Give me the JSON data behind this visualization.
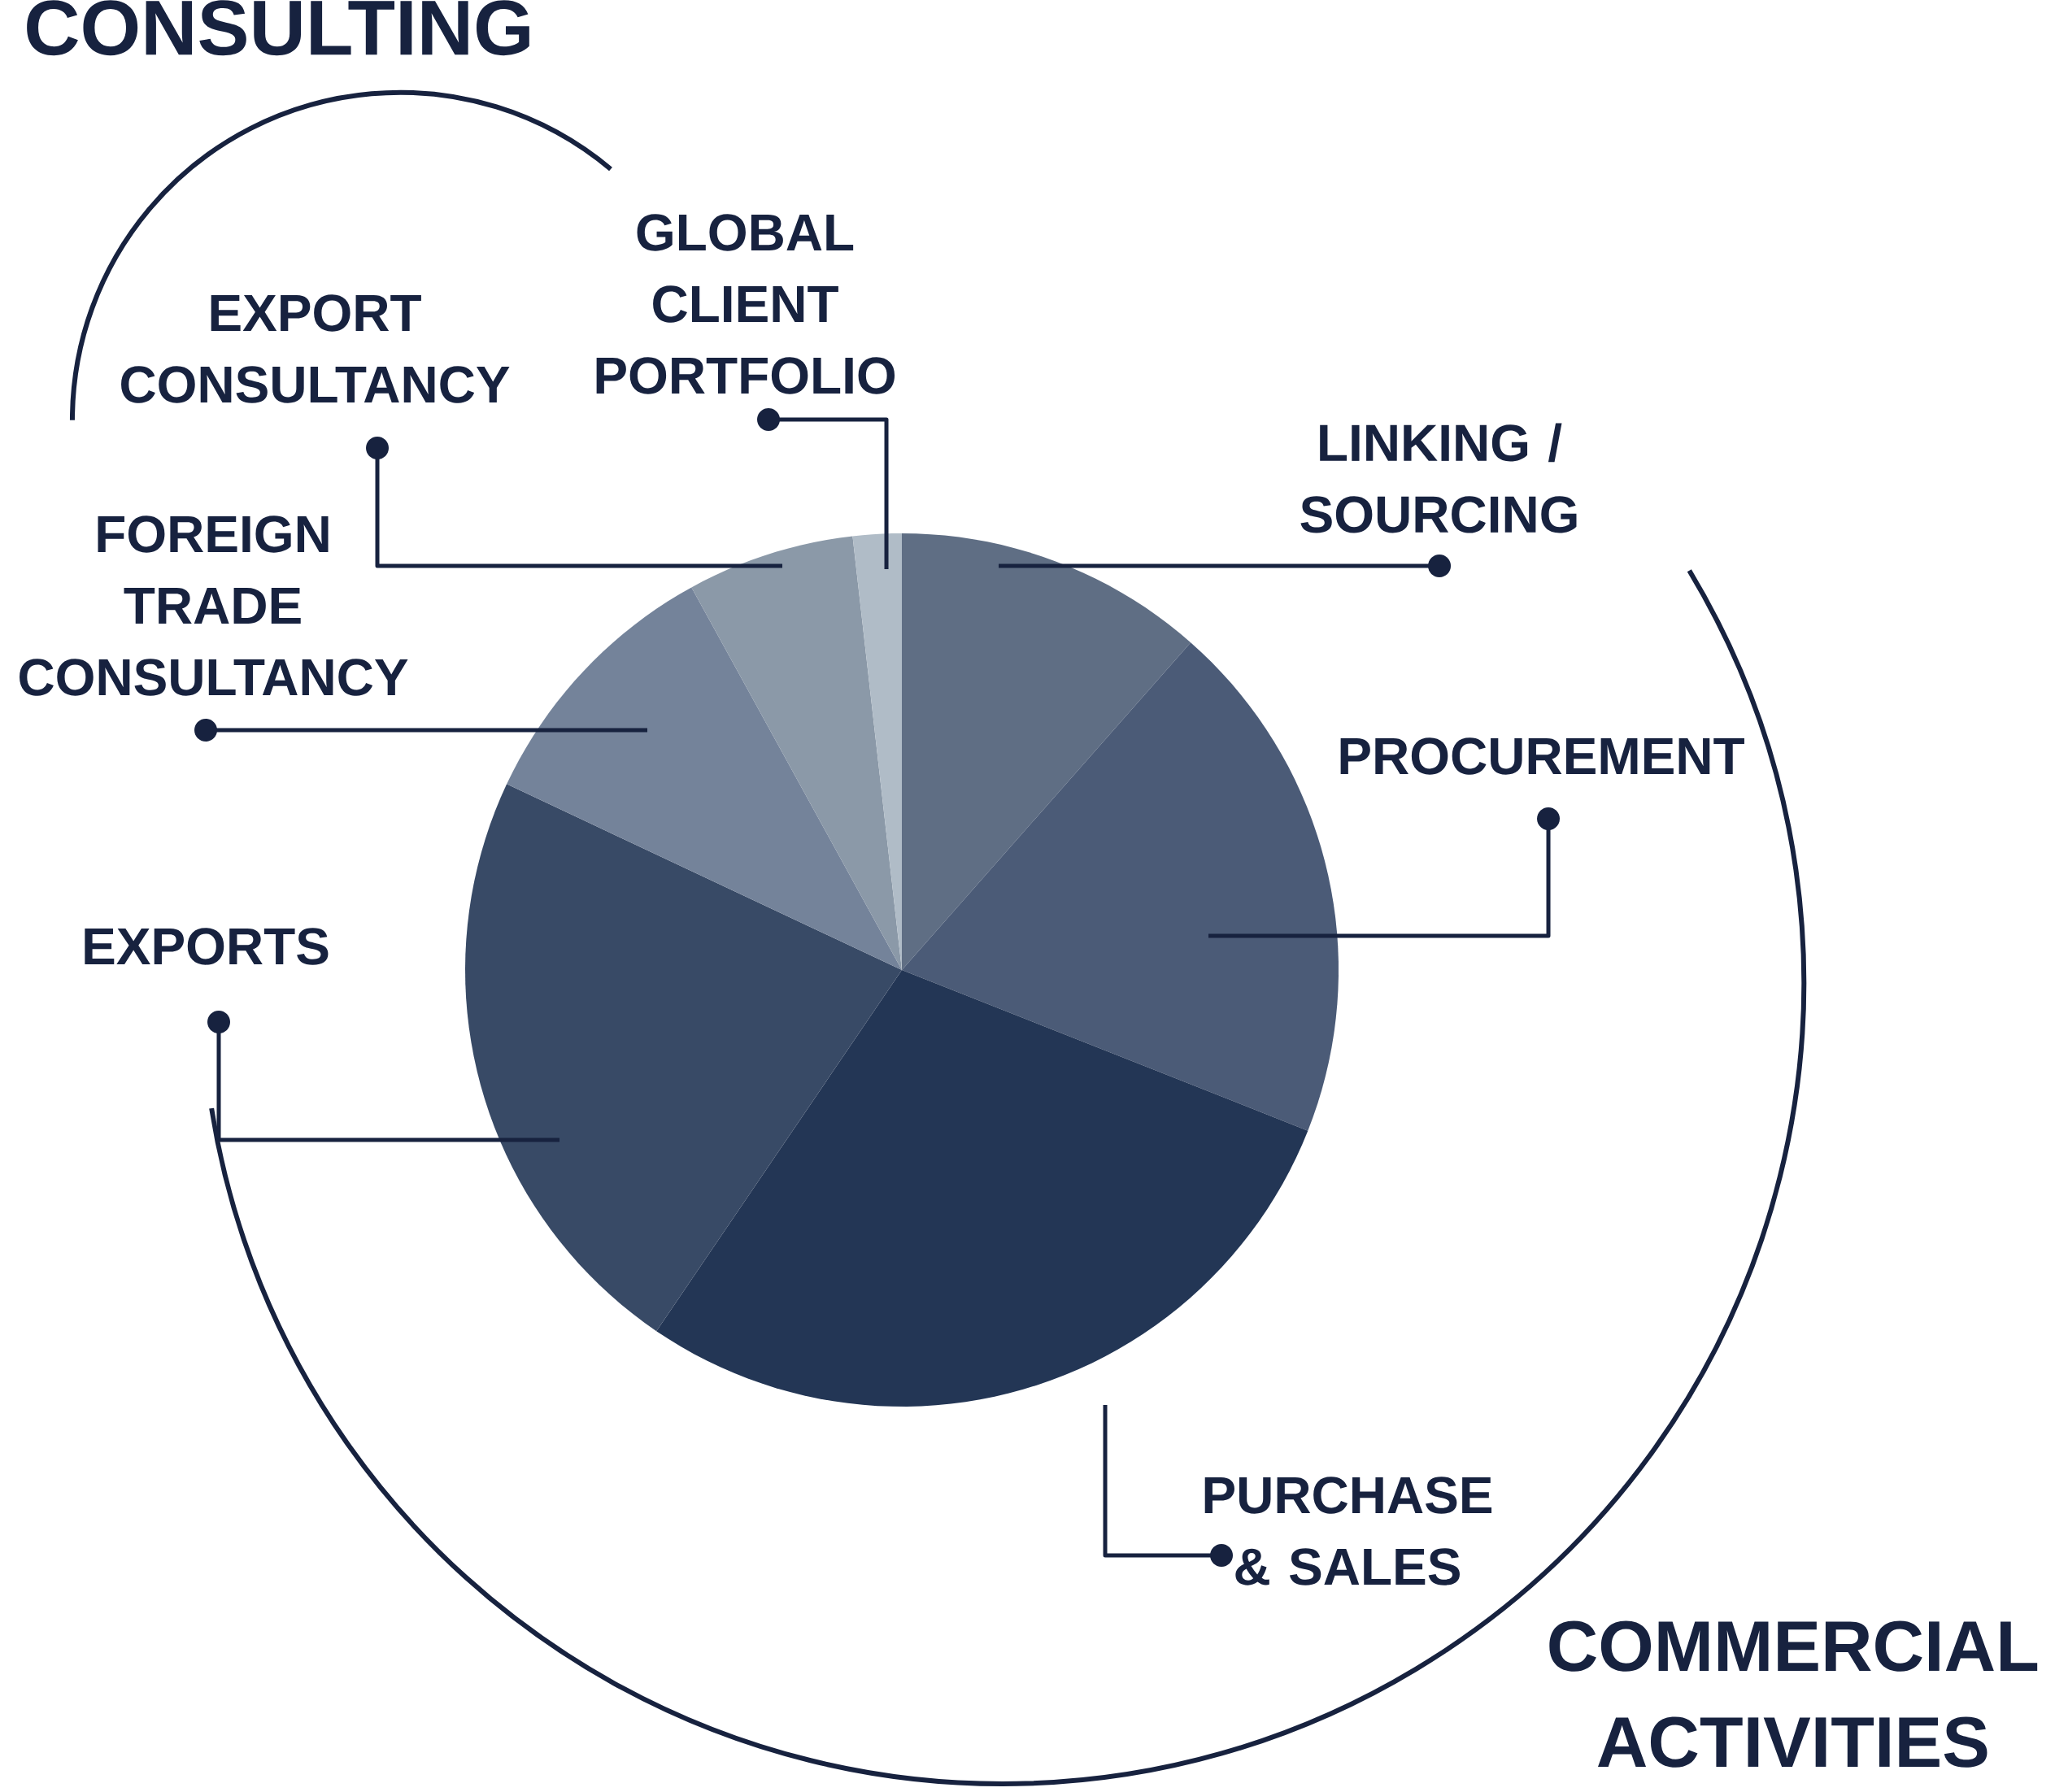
{
  "chart_data": {
    "type": "pie",
    "categories": [
      "LINKING / SOURCING",
      "PROCUREMENT",
      "PURCHASE & SALES",
      "EXPORTS",
      "FOREIGN TRADE CONSULTANCY",
      "EXPORT CONSULTANCY",
      "GLOBAL CLIENT PORTFOLIO"
    ],
    "values": [
      11.5,
      19.5,
      28.5,
      22.5,
      10,
      6.2,
      1.8
    ],
    "colors": [
      "#5f6e84",
      "#4b5b77",
      "#233655",
      "#384a66",
      "#74839a",
      "#8b99a8",
      "#b0bcc7"
    ],
    "annotations": [
      "CONSULTING",
      "COMMERCIAL ACTIVITIES"
    ]
  }
}
